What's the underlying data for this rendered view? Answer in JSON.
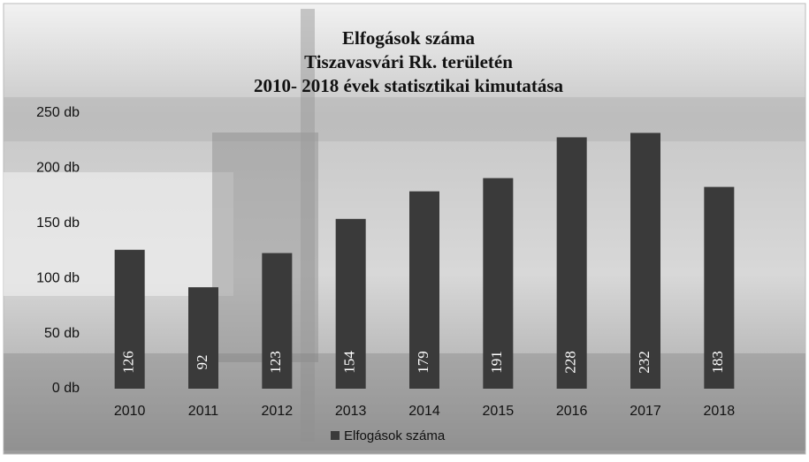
{
  "chart_data": {
    "type": "bar",
    "title": [
      "Elfogások száma",
      "Tiszavasvári Rk. területén",
      "2010- 2018 évek statisztikai kimutatása"
    ],
    "categories": [
      "2010",
      "2011",
      "2012",
      "2013",
      "2014",
      "2015",
      "2016",
      "2017",
      "2018"
    ],
    "series": [
      {
        "name": "Elfogások száma",
        "color": "#3a3a3a",
        "values": [
          126,
          92,
          123,
          154,
          179,
          191,
          228,
          232,
          183
        ]
      }
    ],
    "ylim": [
      0,
      250
    ],
    "yticks": [
      {
        "value": 0,
        "label": "0 db"
      },
      {
        "value": 50,
        "label": "50 db"
      },
      {
        "value": 100,
        "label": "100 db"
      },
      {
        "value": 150,
        "label": "150 db"
      },
      {
        "value": 200,
        "label": "200 db"
      },
      {
        "value": 250,
        "label": "250 db"
      }
    ],
    "legend": "bottom"
  }
}
